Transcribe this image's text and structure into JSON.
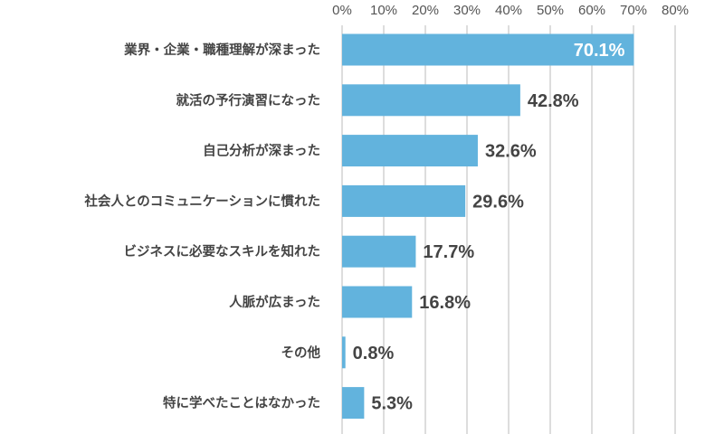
{
  "chart_data": {
    "type": "bar",
    "orientation": "horizontal",
    "categories": [
      "業界・企業・職種理解が深まった",
      "就活の予行演習になった",
      "自己分析が深まった",
      "社会人とのコミュニケーションに慣れた",
      "ビジネスに必要なスキルを知れた",
      "人脈が広まった",
      "その他",
      "特に学べたことはなかった"
    ],
    "values": [
      70.1,
      42.8,
      32.6,
      29.6,
      17.7,
      16.8,
      0.8,
      5.3
    ],
    "value_labels": [
      "70.1%",
      "42.8%",
      "32.6%",
      "29.6%",
      "17.7%",
      "16.8%",
      "0.8%",
      "5.3%"
    ],
    "xlim": [
      0,
      80
    ],
    "x_ticks": [
      "0%",
      "10%",
      "20%",
      "30%",
      "40%",
      "50%",
      "60%",
      "70%",
      "80%"
    ],
    "axis_position": "top",
    "grid": true,
    "bar_color": "#62b3dd",
    "label_color": "#444444",
    "inside_label_color": "#ffffff"
  }
}
